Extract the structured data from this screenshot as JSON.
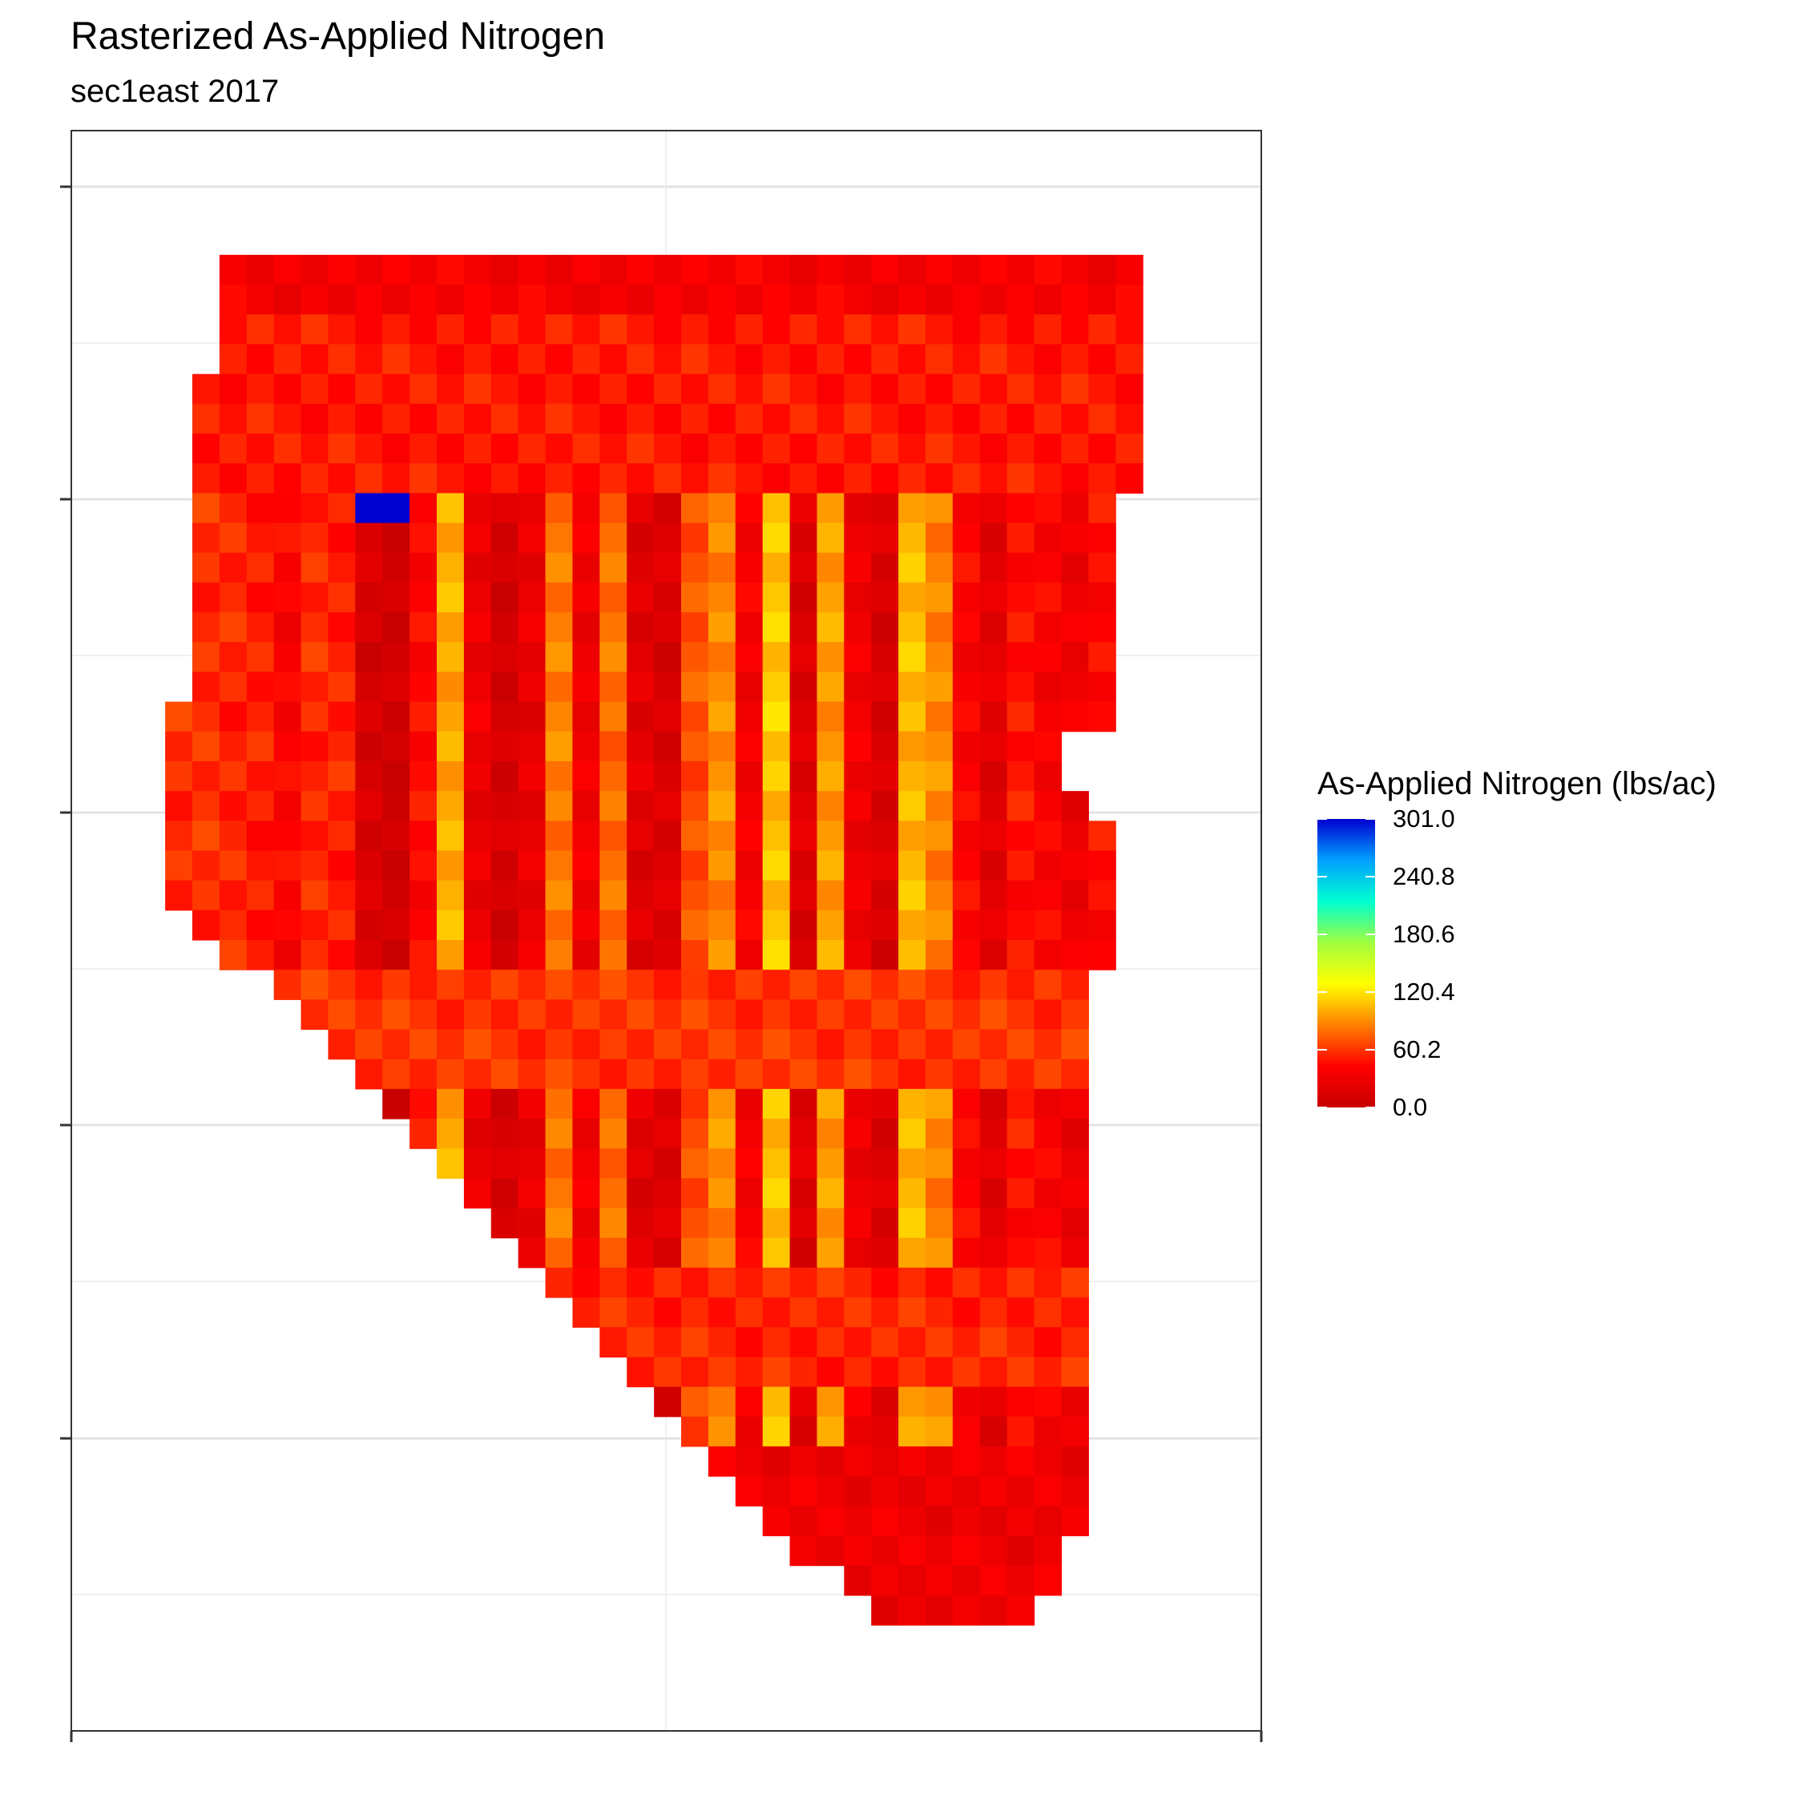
{
  "chart_data": {
    "type": "heatmap",
    "title": "Rasterized As-Applied Nitrogen",
    "subtitle": "sec1east 2017",
    "xlabel": "",
    "ylabel": "",
    "grid": true,
    "legend": {
      "title": "As-Applied Nitrogen (lbs/ac)",
      "placement": "right",
      "min": 0.0,
      "max": 301.0,
      "breaks": [
        "301.0",
        "240.8",
        "180.6",
        "120.4",
        "60.2",
        "0.0"
      ],
      "break_values": [
        301.0,
        240.8,
        180.6,
        120.4,
        60.2,
        0.0
      ],
      "colors": [
        "#c80000",
        "#ff0000",
        "#ff8000",
        "#ffff00",
        "#a0ff40",
        "#00ffd0",
        "#00a0ff",
        "#0000d0"
      ]
    },
    "grid_cols": 36,
    "grid_rows": 46,
    "strip_values": [
      58,
      55,
      52,
      40,
      56,
      53,
      12,
      6,
      44,
      100,
      28,
      10,
      26,
      85,
      32,
      80,
      20,
      15,
      70,
      90,
      35,
      110,
      18,
      95,
      32,
      14,
      105,
      88,
      40,
      22,
      48,
      38,
      30,
      45,
      42,
      50
    ],
    "band_values": [
      {
        "row_start": 0,
        "row_end": 2,
        "value": 35
      },
      {
        "row_start": 2,
        "row_end": 8,
        "value": 50
      },
      {
        "row_start": 24,
        "row_end": 28,
        "value": 60
      },
      {
        "row_start": 34,
        "row_end": 38,
        "value": 55
      },
      {
        "row_start": 40,
        "row_end": 46,
        "value": 30
      }
    ],
    "row_extent": [
      [
        1,
        34
      ],
      [
        1,
        34
      ],
      [
        1,
        34
      ],
      [
        1,
        34
      ],
      [
        0,
        34
      ],
      [
        0,
        34
      ],
      [
        0,
        34
      ],
      [
        0,
        34
      ],
      [
        0,
        33
      ],
      [
        0,
        33
      ],
      [
        0,
        33
      ],
      [
        0,
        33
      ],
      [
        0,
        33
      ],
      [
        0,
        33
      ],
      [
        0,
        33
      ],
      [
        -1,
        33
      ],
      [
        -1,
        31
      ],
      [
        -1,
        31
      ],
      [
        -1,
        32
      ],
      [
        -1,
        33
      ],
      [
        -1,
        33
      ],
      [
        -1,
        33
      ],
      [
        0,
        33
      ],
      [
        1,
        33
      ],
      [
        3,
        32
      ],
      [
        4,
        32
      ],
      [
        5,
        32
      ],
      [
        6,
        32
      ],
      [
        7,
        32
      ],
      [
        8,
        32
      ],
      [
        9,
        32
      ],
      [
        10,
        32
      ],
      [
        11,
        32
      ],
      [
        12,
        32
      ],
      [
        13,
        32
      ],
      [
        14,
        32
      ],
      [
        15,
        32
      ],
      [
        16,
        32
      ],
      [
        17,
        32
      ],
      [
        18,
        32
      ],
      [
        19,
        32
      ],
      [
        20,
        32
      ],
      [
        21,
        32
      ],
      [
        22,
        31
      ],
      [
        24,
        31
      ],
      [
        25,
        30
      ]
    ],
    "special_cells": [
      {
        "row": 8,
        "col": 6,
        "value": 301
      },
      {
        "row": 8,
        "col": 7,
        "value": 301
      }
    ]
  }
}
